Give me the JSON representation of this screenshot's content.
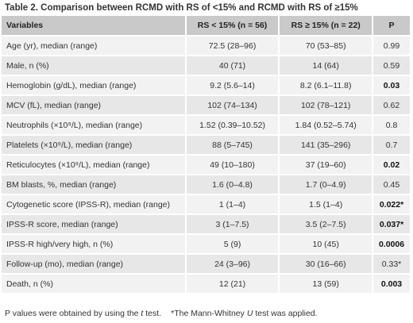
{
  "title": "Table 2. Comparison between RCMD with RS of <15% and RCMD with RS of ≥15%",
  "headers": [
    "Variables",
    "RS < 15% (n = 56)",
    "RS ≥ 15% (n = 22)",
    "P"
  ],
  "rows": [
    {
      "variable": "Age (yr), median (range)",
      "low": "72.5 (28–96)",
      "high": "70 (53–85)",
      "p": "0.99",
      "bold": false
    },
    {
      "variable": "Male, n (%)",
      "low": "40 (71)",
      "high": "14 (64)",
      "p": "0.59",
      "bold": false
    },
    {
      "variable": "Hemoglobin (g/dL), median (range)",
      "low": "9.2 (5.6–14)",
      "high": "8.2 (6.1–11.8)",
      "p": "0.03",
      "bold": true
    },
    {
      "variable": "MCV (fL), median (range)",
      "low": "102 (74–134)",
      "high": "102 (78–121)",
      "p": "0.62",
      "bold": false
    },
    {
      "variable": "Neutrophils (×10⁹/L), median (range)",
      "low": "1.52 (0.39–10.52)",
      "high": "1.84 (0.52–5.74)",
      "p": "0.8",
      "bold": false
    },
    {
      "variable": "Platelets (×10⁹/L), median (range)",
      "low": "88 (5–745)",
      "high": "141 (35–296)",
      "p": "0.7",
      "bold": false
    },
    {
      "variable": "Reticulocytes (×10⁹/L), median (range)",
      "low": "49 (10–180)",
      "high": "37 (19–60)",
      "p": "0.02",
      "bold": true
    },
    {
      "variable": "BM blasts, %, median (range)",
      "low": "1.6 (0–4.8)",
      "high": "1.7 (0–4.9)",
      "p": "0.45",
      "bold": false
    },
    {
      "variable": "Cytogenetic score (IPSS-R), median (range)",
      "low": "1 (1–4)",
      "high": "1.5 (1–4)",
      "p": "0.022*",
      "bold": true
    },
    {
      "variable": "IPSS-R score, median (range)",
      "low": "3 (1–7.5)",
      "high": "3.5 (2–7.5)",
      "p": "0.037*",
      "bold": true
    },
    {
      "variable": "IPSS-R high/very high, n (%)",
      "low": "5 (9)",
      "high": "10 (45)",
      "p": "0.0006",
      "bold": true
    },
    {
      "variable": "Follow-up (mo), median (range)",
      "low": "24 (3–96)",
      "high": "30 (16–66)",
      "p": "0.33*",
      "bold": false
    },
    {
      "variable": "Death, n (%)",
      "low": "12 (21)",
      "high": "13 (59)",
      "p": "0.003",
      "bold": true
    }
  ],
  "footnote": {
    "part1_prefix": "P values were obtained by using the ",
    "part1_italic": "t",
    "part1_suffix": " test.",
    "part2_prefix": "*The Mann-Whitney ",
    "part2_italic": "U",
    "part2_suffix": " test was applied."
  }
}
